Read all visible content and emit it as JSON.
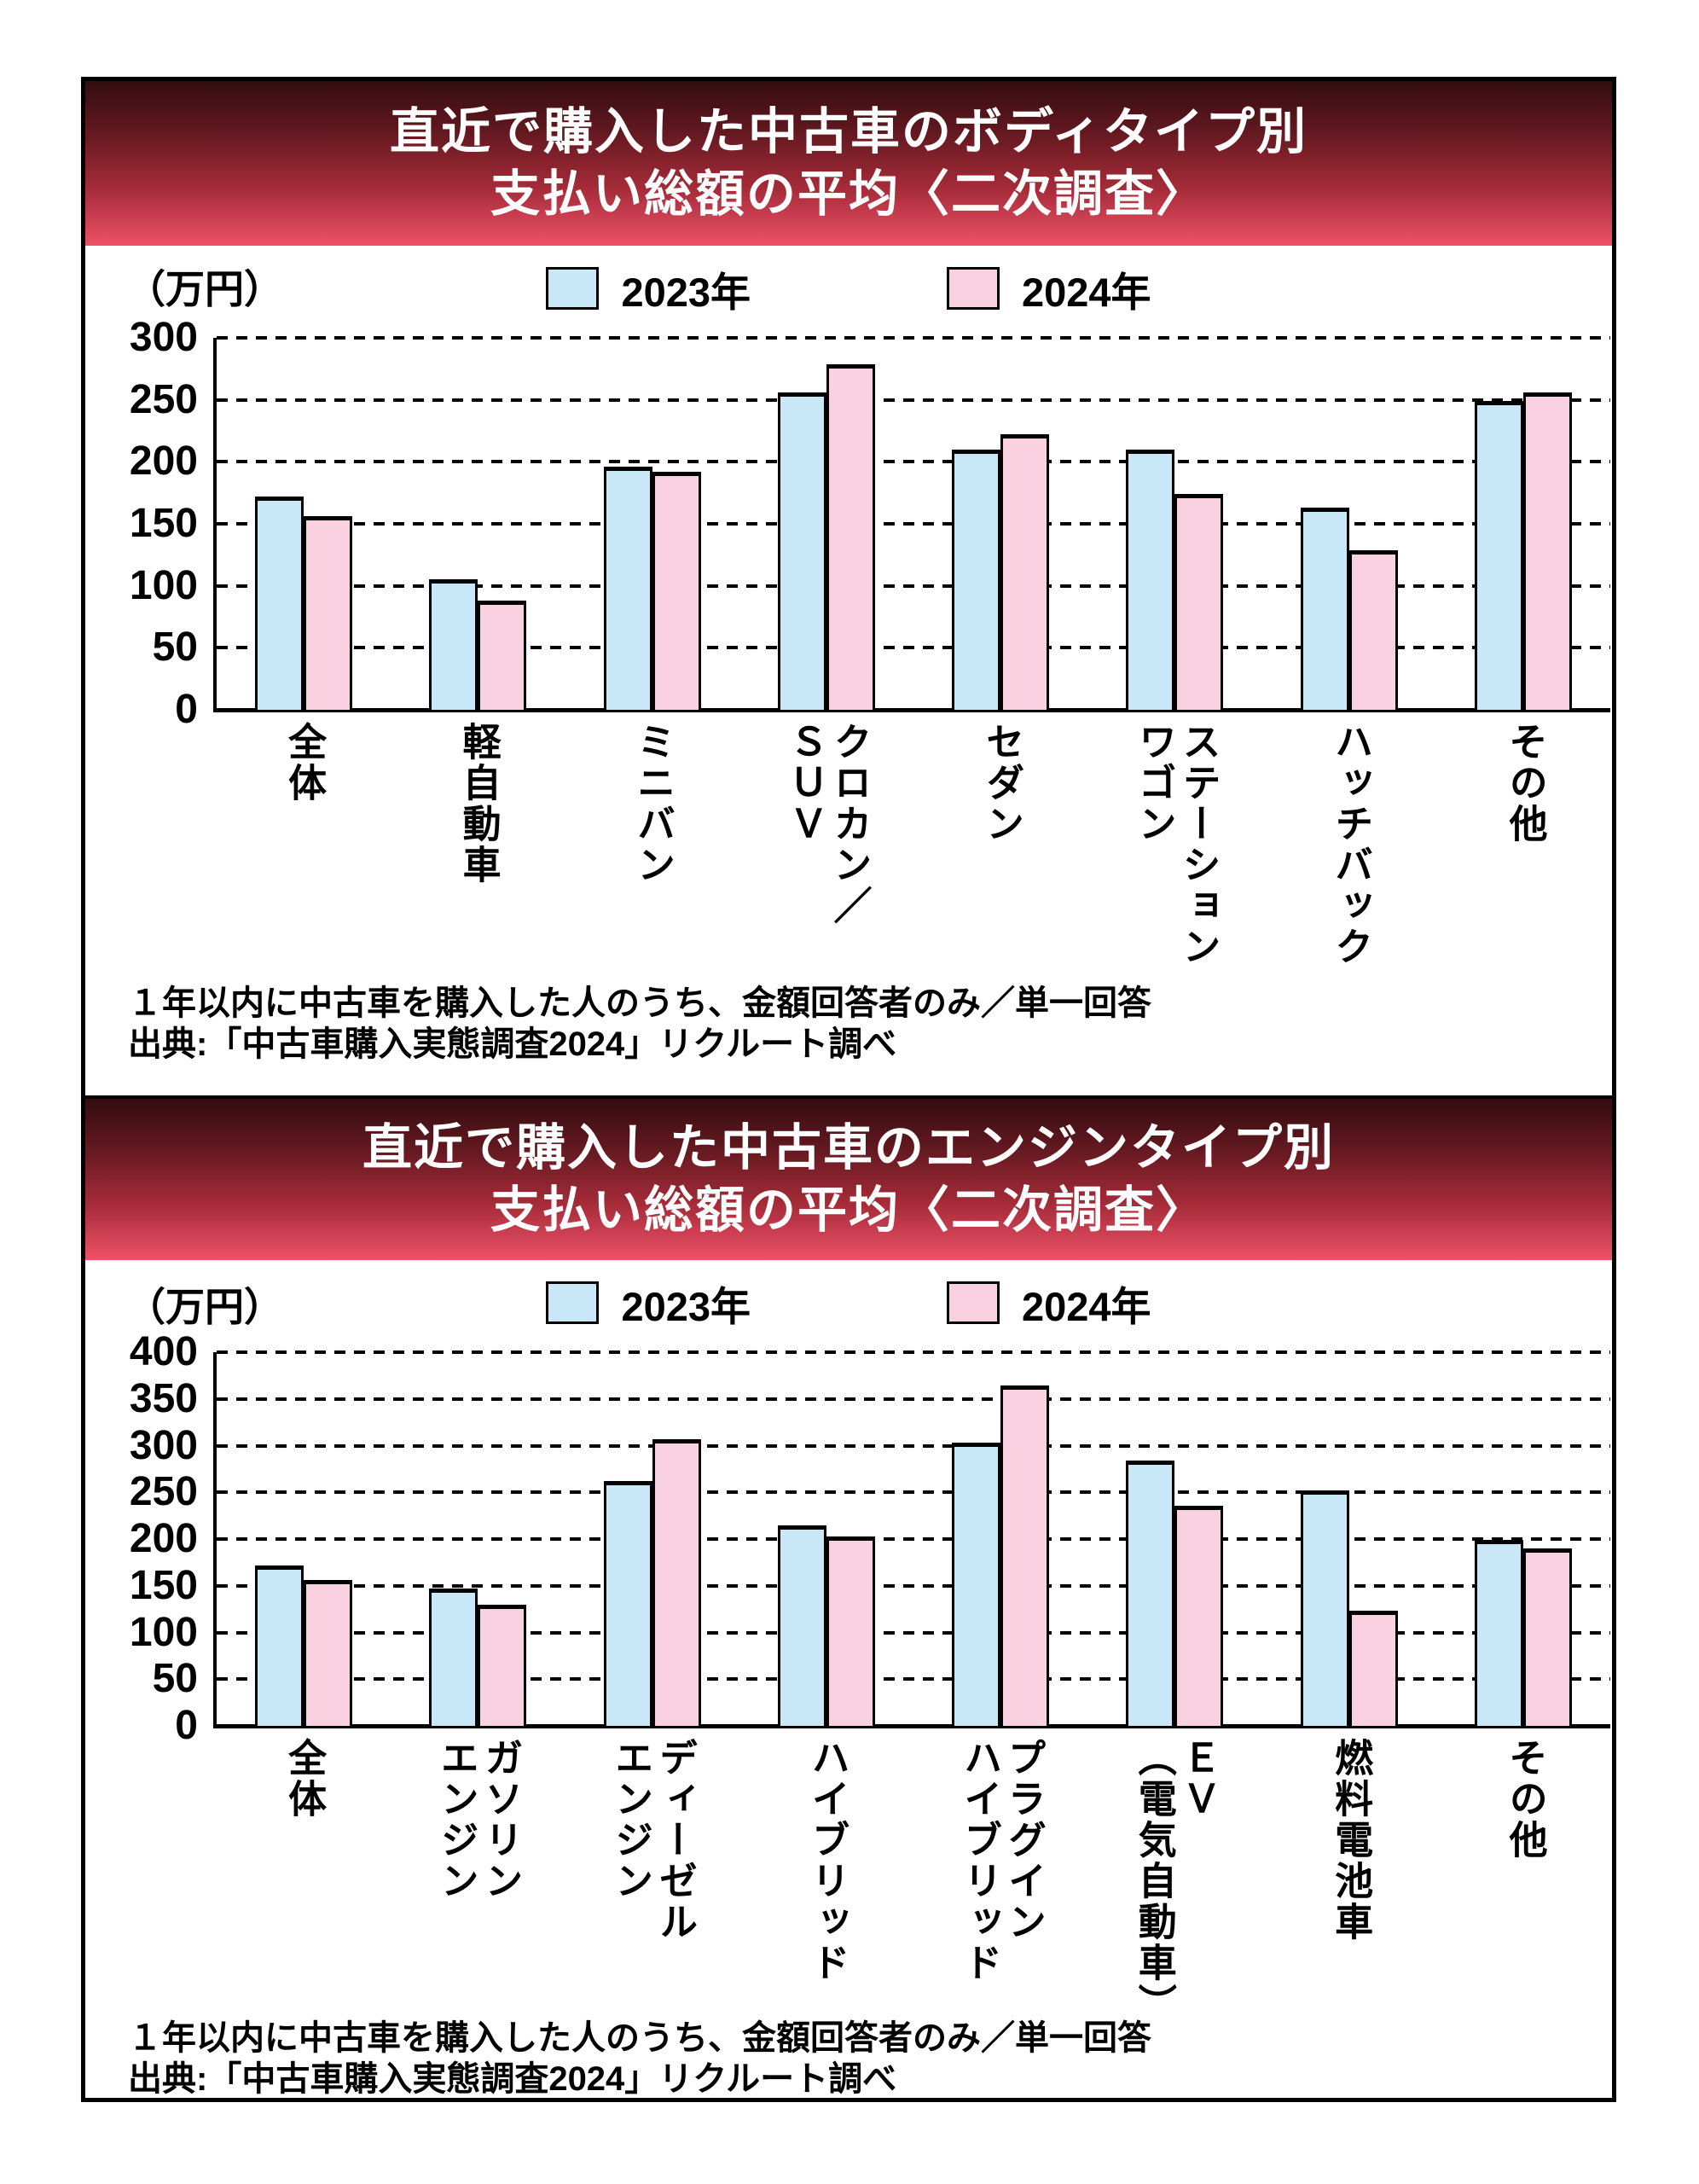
{
  "source_note": {
    "line1": "１年以内に中古車を購入した人のうち、金額回答者のみ／単一回答",
    "line2": "出典:「中古車購入実態調査2024」リクルート調べ"
  },
  "colors": {
    "series_2023": "#c8e8f8",
    "series_2024": "#f9d1e1",
    "banner_gradient_top": "#330d10",
    "banner_gradient_bottom": "#ee5168",
    "bar_border": "#000000"
  },
  "chart_data": [
    {
      "type": "bar",
      "title_line1": "直近で購入した中古車のボディタイプ別",
      "title_line2": "支払い総額の平均〈二次調査〉",
      "unit_label": "（万円）",
      "ylabel": "（万円）",
      "xlabel": "",
      "ylim": [
        0,
        300
      ],
      "ytick_step": 50,
      "yticks": [
        "0",
        "50",
        "100",
        "150",
        "200",
        "250",
        "300"
      ],
      "grid": "dashed-horizontal",
      "legend_position": "top",
      "legend": [
        {
          "label": "2023年",
          "color": "#c8e8f8"
        },
        {
          "label": "2024年",
          "color": "#f9d1e1"
        }
      ],
      "categories": [
        "全体",
        "軽自動車",
        "ミニバン",
        "クロカン／\nＳＵＶ",
        "セダン",
        "ステーション\nワゴン",
        "ハッチバック",
        "その他"
      ],
      "series": [
        {
          "name": "2023年",
          "values": [
            172,
            105,
            196,
            256,
            210,
            210,
            163,
            249
          ]
        },
        {
          "name": "2024年",
          "values": [
            156,
            88,
            192,
            279,
            222,
            174,
            129,
            256
          ]
        }
      ],
      "footnote_line1": "１年以内に中古車を購入した人のうち、金額回答者のみ／単一回答",
      "footnote_line2": "出典:「中古車購入実態調査2024」リクルート調べ"
    },
    {
      "type": "bar",
      "title_line1": "直近で購入した中古車のエンジンタイプ別",
      "title_line2": "支払い総額の平均〈二次調査〉",
      "unit_label": "（万円）",
      "ylabel": "（万円）",
      "xlabel": "",
      "ylim": [
        0,
        400
      ],
      "ytick_step": 50,
      "yticks": [
        "0",
        "50",
        "100",
        "150",
        "200",
        "250",
        "300",
        "350",
        "400"
      ],
      "grid": "dashed-horizontal",
      "legend_position": "top",
      "legend": [
        {
          "label": "2023年",
          "color": "#c8e8f8"
        },
        {
          "label": "2024年",
          "color": "#f9d1e1"
        }
      ],
      "categories": [
        "全体",
        "ガソリン\nエンジン",
        "ディーゼル\nエンジン",
        "ハイブリッド",
        "プラグイン\nハイブリッド",
        "ＥＶ\n（電気自動車）",
        "燃料電池車",
        "その他"
      ],
      "series": [
        {
          "name": "2023年",
          "values": [
            172,
            147,
            262,
            215,
            303,
            284,
            252,
            199
          ]
        },
        {
          "name": "2024年",
          "values": [
            156,
            130,
            307,
            203,
            364,
            236,
            123,
            190
          ]
        }
      ],
      "footnote_line1": "１年以内に中古車を購入した人のうち、金額回答者のみ／単一回答",
      "footnote_line2": "出典:「中古車購入実態調査2024」リクルート調べ"
    }
  ]
}
